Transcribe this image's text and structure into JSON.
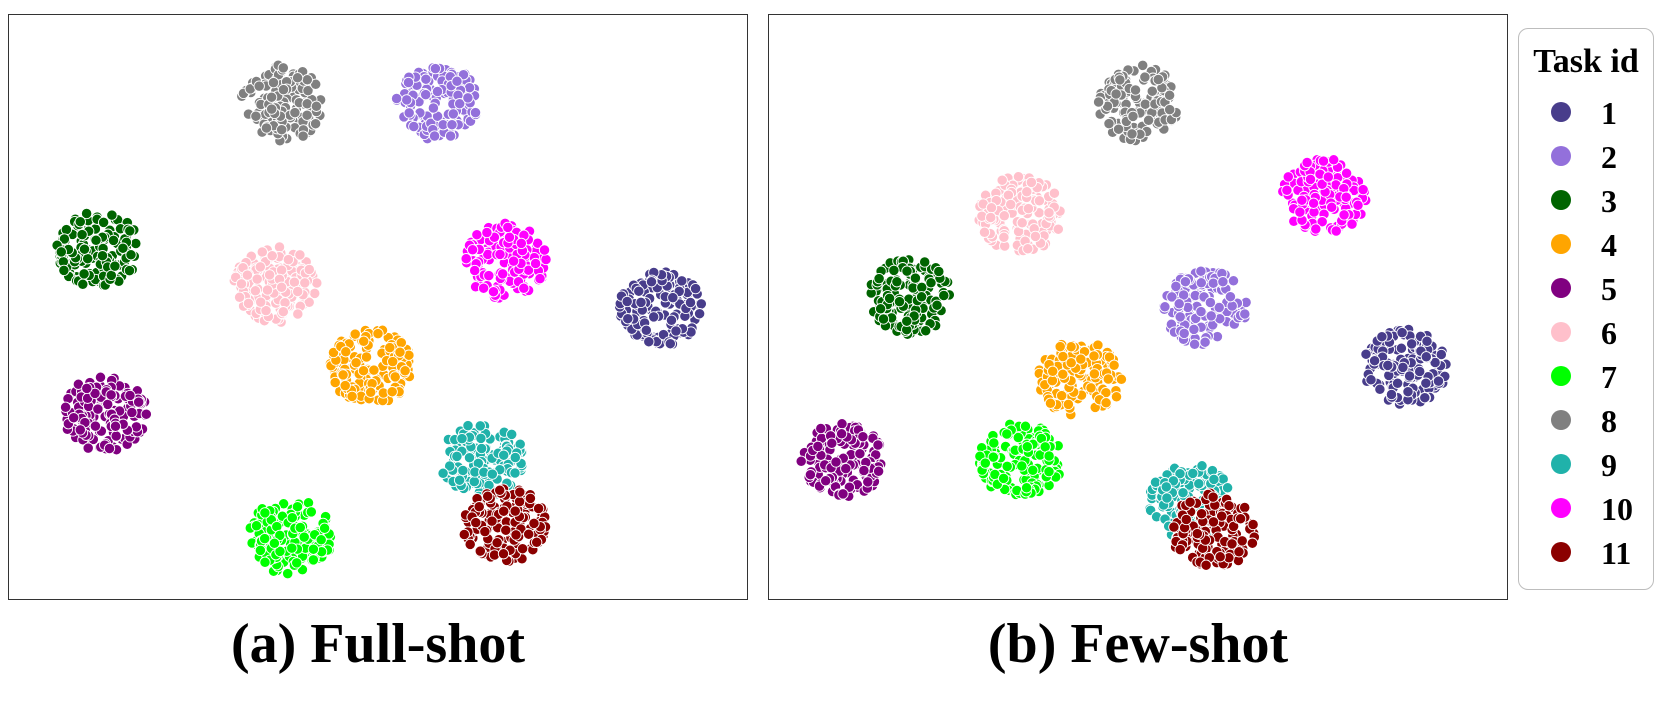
{
  "chart_data": [
    {
      "type": "scatter",
      "title": "(a) Full-shot",
      "xlabel": "",
      "ylabel": "",
      "grid": false,
      "clusters": [
        {
          "task": "1",
          "center": [
            0.88,
            0.5
          ]
        },
        {
          "task": "2",
          "center": [
            0.58,
            0.15
          ]
        },
        {
          "task": "3",
          "center": [
            0.12,
            0.4
          ]
        },
        {
          "task": "4",
          "center": [
            0.49,
            0.6
          ]
        },
        {
          "task": "5",
          "center": [
            0.13,
            0.68
          ]
        },
        {
          "task": "6",
          "center": [
            0.36,
            0.46
          ]
        },
        {
          "task": "7",
          "center": [
            0.38,
            0.89
          ]
        },
        {
          "task": "8",
          "center": [
            0.37,
            0.15
          ]
        },
        {
          "task": "9",
          "center": [
            0.64,
            0.76
          ]
        },
        {
          "task": "10",
          "center": [
            0.67,
            0.42
          ]
        },
        {
          "task": "11",
          "center": [
            0.67,
            0.87
          ]
        }
      ]
    },
    {
      "type": "scatter",
      "title": "(b) Few-shot",
      "xlabel": "",
      "ylabel": "",
      "grid": false,
      "clusters": [
        {
          "task": "1",
          "center": [
            0.86,
            0.6
          ]
        },
        {
          "task": "2",
          "center": [
            0.59,
            0.5
          ]
        },
        {
          "task": "3",
          "center": [
            0.19,
            0.48
          ]
        },
        {
          "task": "4",
          "center": [
            0.42,
            0.62
          ]
        },
        {
          "task": "5",
          "center": [
            0.1,
            0.76
          ]
        },
        {
          "task": "6",
          "center": [
            0.34,
            0.34
          ]
        },
        {
          "task": "7",
          "center": [
            0.34,
            0.76
          ]
        },
        {
          "task": "8",
          "center": [
            0.5,
            0.15
          ]
        },
        {
          "task": "9",
          "center": [
            0.57,
            0.83
          ]
        },
        {
          "task": "10",
          "center": [
            0.75,
            0.31
          ]
        },
        {
          "task": "11",
          "center": [
            0.6,
            0.88
          ]
        }
      ]
    }
  ],
  "legend": {
    "title": "Task id",
    "placement": "right",
    "items": [
      {
        "label": "1",
        "color": "#483d8b"
      },
      {
        "label": "2",
        "color": "#9370db"
      },
      {
        "label": "3",
        "color": "#006400"
      },
      {
        "label": "4",
        "color": "#ffa500"
      },
      {
        "label": "5",
        "color": "#800080"
      },
      {
        "label": "6",
        "color": "#ffc0cb"
      },
      {
        "label": "7",
        "color": "#00ff00"
      },
      {
        "label": "8",
        "color": "#808080"
      },
      {
        "label": "9",
        "color": "#20b2aa"
      },
      {
        "label": "10",
        "color": "#ff00ff"
      },
      {
        "label": "11",
        "color": "#8b0000"
      }
    ]
  },
  "captions": {
    "a": "(a) Full-shot",
    "b": "(b) Few-shot"
  }
}
